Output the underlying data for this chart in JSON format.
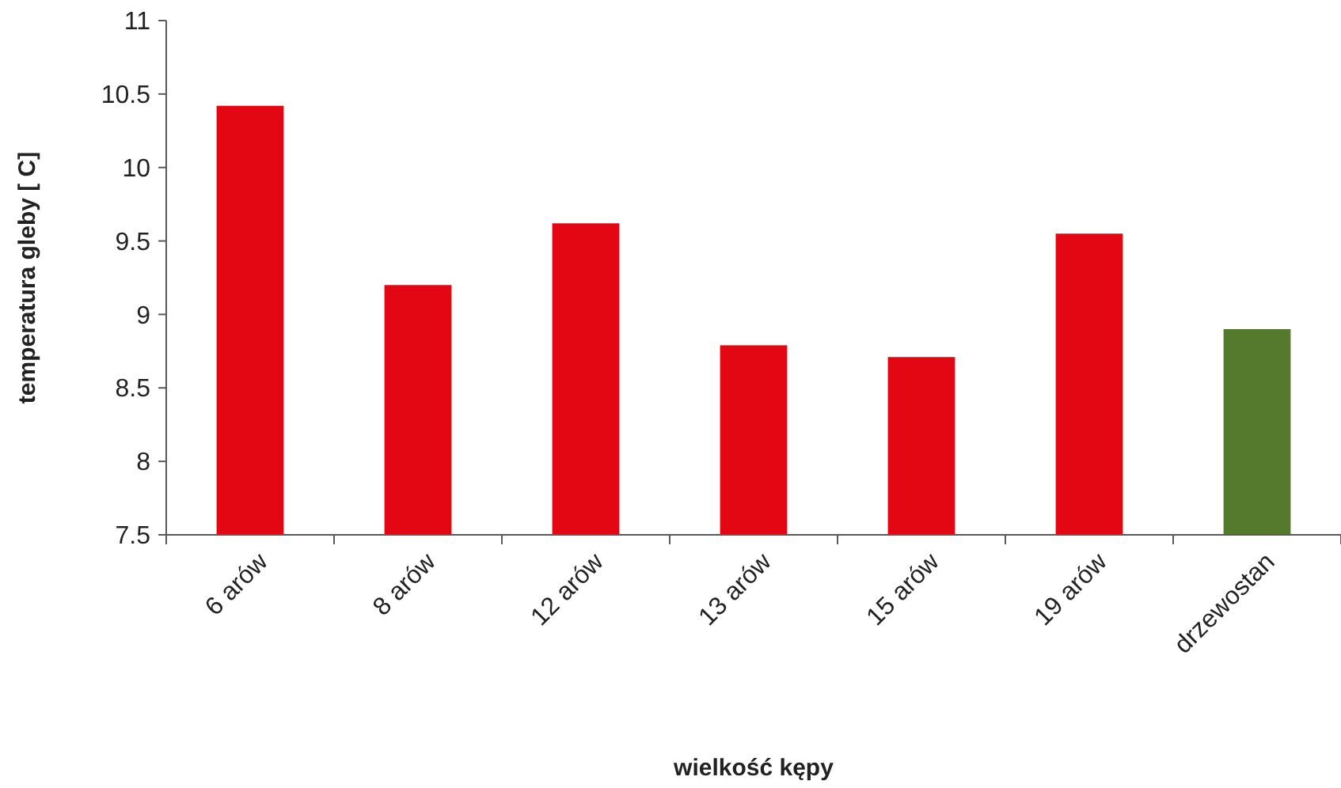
{
  "chart_data": {
    "type": "bar",
    "xlabel": "wielkość kępy",
    "ylabel": "temperatura gleby [ C]",
    "categories": [
      "6 arów",
      "8 arów",
      "12 arów",
      "13 arów",
      "15 arów",
      "19 arów",
      "drzewostan"
    ],
    "values": [
      10.42,
      9.2,
      9.62,
      8.79,
      8.71,
      9.55,
      8.9
    ],
    "colors": [
      "#e30613",
      "#e30613",
      "#e30613",
      "#e30613",
      "#e30613",
      "#e30613",
      "#557a2e"
    ],
    "ylim": [
      7.5,
      11
    ],
    "yticks": [
      7.5,
      8,
      8.5,
      9,
      9.5,
      10,
      10.5,
      11
    ],
    "grid": false
  }
}
